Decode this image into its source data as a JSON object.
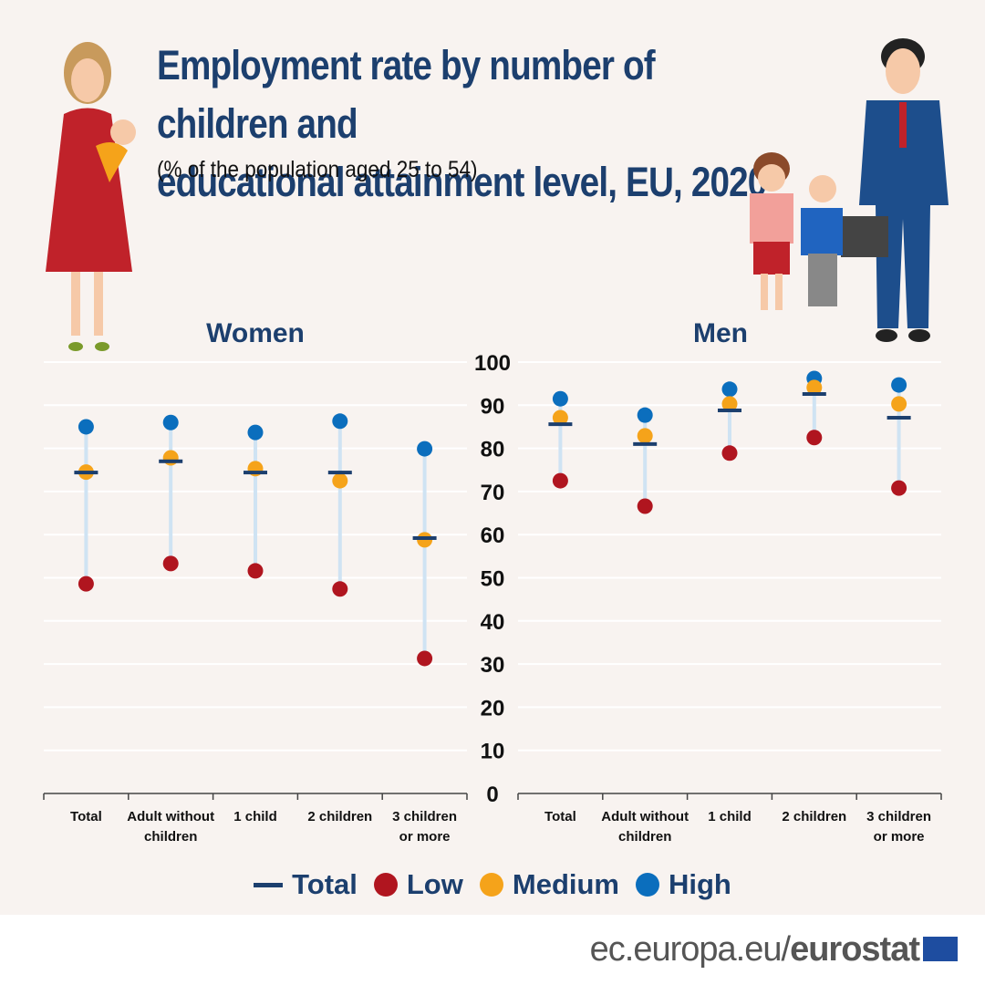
{
  "header": {
    "title_line1": "Employment rate by number of children and",
    "title_line2": "educational attainment level, EU, 2020",
    "subtitle": "(% of the population aged  25 to 54)"
  },
  "footer": {
    "site_prefix": "ec.europa.eu/",
    "site_brand": "eurostat"
  },
  "colors": {
    "total": "#1c3f6e",
    "low": "#b0151f",
    "medium": "#f5a31a",
    "high": "#0b6ebd",
    "stem": "#cfe3f3",
    "grid": "#ffffff"
  },
  "legend": [
    {
      "key": "total",
      "label": "Total"
    },
    {
      "key": "low",
      "label": "Low"
    },
    {
      "key": "medium",
      "label": "Medium"
    },
    {
      "key": "high",
      "label": "High"
    }
  ],
  "chart_data": [
    {
      "type": "scatter",
      "title": "Women",
      "categories": [
        "Total",
        "Adult without children",
        "1 child",
        "2 children",
        "3 children or more"
      ],
      "series": [
        {
          "name": "Total",
          "values": [
            74.4,
            77.0,
            74.4,
            74.4,
            59.2
          ]
        },
        {
          "name": "Low",
          "values": [
            48.6,
            53.3,
            51.6,
            47.4,
            31.3
          ]
        },
        {
          "name": "Medium",
          "values": [
            74.5,
            77.8,
            75.3,
            72.5,
            58.8
          ]
        },
        {
          "name": "High",
          "values": [
            85.0,
            86.0,
            83.7,
            86.3,
            79.9
          ]
        }
      ],
      "ylim": [
        0,
        100
      ]
    },
    {
      "type": "scatter",
      "title": "Men",
      "categories": [
        "Total",
        "Adult without children",
        "1 child",
        "2 children",
        "3 children or more"
      ],
      "series": [
        {
          "name": "Total",
          "values": [
            85.6,
            81.0,
            88.8,
            92.6,
            87.1
          ]
        },
        {
          "name": "Low",
          "values": [
            72.5,
            66.6,
            78.9,
            82.5,
            70.8
          ]
        },
        {
          "name": "Medium",
          "values": [
            87.1,
            82.9,
            90.3,
            94.1,
            90.3
          ]
        },
        {
          "name": "High",
          "values": [
            91.5,
            87.7,
            93.7,
            96.2,
            94.7
          ]
        }
      ],
      "ylim": [
        0,
        100
      ]
    }
  ],
  "y_ticks": [
    "0",
    "10",
    "20",
    "30",
    "40",
    "50",
    "60",
    "70",
    "80",
    "90",
    "100"
  ],
  "category_label_lines": [
    [
      "Total"
    ],
    [
      "Adult without",
      "children"
    ],
    [
      "1 child"
    ],
    [
      "2 children"
    ],
    [
      "3 children",
      "or more"
    ]
  ]
}
